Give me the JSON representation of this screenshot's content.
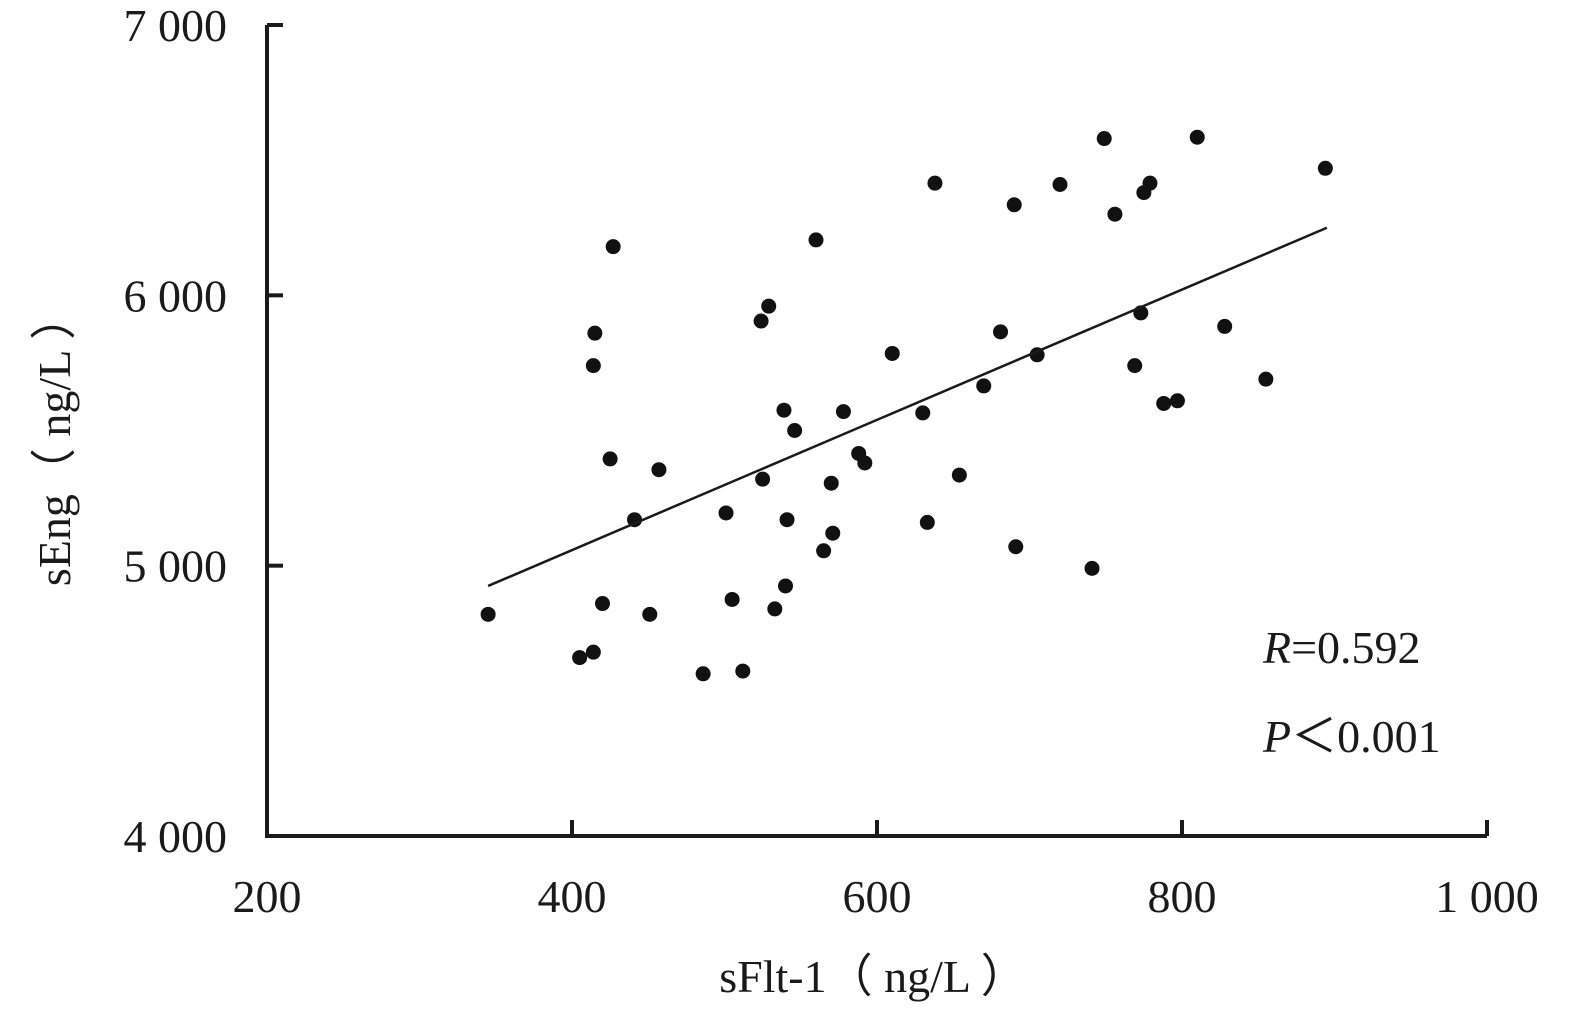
{
  "chart_data": {
    "type": "scatter",
    "xlabel": "sFlt-1（ ng/L ）",
    "ylabel": "sEng（ ng/L ）",
    "xlim": [
      200,
      1000
    ],
    "ylim": [
      4000,
      7000
    ],
    "x_ticks": [
      200,
      400,
      600,
      800,
      1000
    ],
    "y_ticks": [
      4000,
      5000,
      6000,
      7000
    ],
    "x_tick_labels": [
      "200",
      "400",
      "600",
      "800",
      "1 000"
    ],
    "y_tick_labels": [
      "4 000",
      "5 000",
      "6 000",
      "7 000"
    ],
    "grid": false,
    "annotations": {
      "r_symbol": "R",
      "r_value": "=0.592",
      "p_symbol": "P",
      "p_value": "＜0.001"
    },
    "fit_line": {
      "x": [
        345,
        895
      ],
      "y": [
        4925,
        6250
      ]
    },
    "points": [
      {
        "x": 345,
        "y": 4820
      },
      {
        "x": 405,
        "y": 4660
      },
      {
        "x": 414,
        "y": 4680
      },
      {
        "x": 415,
        "y": 5860
      },
      {
        "x": 414,
        "y": 5740
      },
      {
        "x": 420,
        "y": 4860
      },
      {
        "x": 425,
        "y": 5395
      },
      {
        "x": 427,
        "y": 6180
      },
      {
        "x": 441,
        "y": 5170
      },
      {
        "x": 451,
        "y": 4820
      },
      {
        "x": 457,
        "y": 5355
      },
      {
        "x": 486,
        "y": 4600
      },
      {
        "x": 501,
        "y": 5195
      },
      {
        "x": 505,
        "y": 4875
      },
      {
        "x": 512,
        "y": 4610
      },
      {
        "x": 524,
        "y": 5905
      },
      {
        "x": 525,
        "y": 5320
      },
      {
        "x": 529,
        "y": 5960
      },
      {
        "x": 533,
        "y": 4840
      },
      {
        "x": 539,
        "y": 5575
      },
      {
        "x": 540,
        "y": 4925
      },
      {
        "x": 541,
        "y": 5170
      },
      {
        "x": 546,
        "y": 5500
      },
      {
        "x": 560,
        "y": 6205
      },
      {
        "x": 565,
        "y": 5055
      },
      {
        "x": 570,
        "y": 5305
      },
      {
        "x": 571,
        "y": 5120
      },
      {
        "x": 578,
        "y": 5570
      },
      {
        "x": 588,
        "y": 5415
      },
      {
        "x": 592,
        "y": 5380
      },
      {
        "x": 610,
        "y": 5785
      },
      {
        "x": 630,
        "y": 5565
      },
      {
        "x": 633,
        "y": 5160
      },
      {
        "x": 638,
        "y": 6415
      },
      {
        "x": 654,
        "y": 5335
      },
      {
        "x": 670,
        "y": 5665
      },
      {
        "x": 681,
        "y": 5865
      },
      {
        "x": 690,
        "y": 6335
      },
      {
        "x": 691,
        "y": 5070
      },
      {
        "x": 705,
        "y": 5780
      },
      {
        "x": 720,
        "y": 6410
      },
      {
        "x": 741,
        "y": 4990
      },
      {
        "x": 749,
        "y": 6580
      },
      {
        "x": 756,
        "y": 6300
      },
      {
        "x": 769,
        "y": 5740
      },
      {
        "x": 773,
        "y": 5935
      },
      {
        "x": 775,
        "y": 6380
      },
      {
        "x": 779,
        "y": 6415
      },
      {
        "x": 788,
        "y": 5600
      },
      {
        "x": 797,
        "y": 5610
      },
      {
        "x": 810,
        "y": 6585
      },
      {
        "x": 828,
        "y": 5885
      },
      {
        "x": 855,
        "y": 5690
      },
      {
        "x": 894,
        "y": 6470
      }
    ]
  }
}
